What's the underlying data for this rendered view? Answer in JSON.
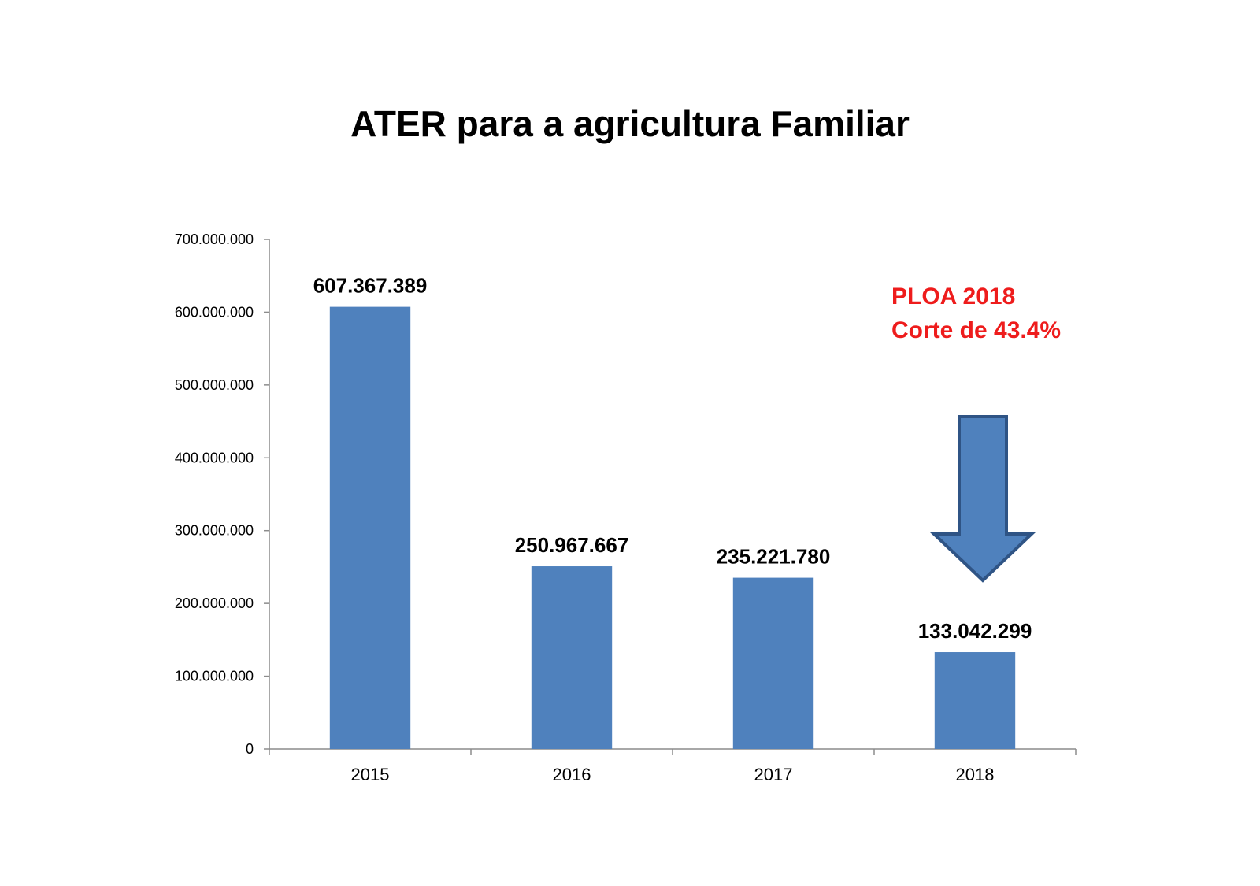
{
  "title": "ATER para a agricultura Familiar",
  "annotation": {
    "line1": "PLOA 2018",
    "line2": "Corte de 43.4%",
    "color": "#ee1c1c",
    "icon": "down-arrow-icon"
  },
  "colors": {
    "bar": "#4f81bd",
    "arrow_fill": "#4f81bd",
    "arrow_stroke": "#2f5485",
    "axis": "#8c8c8c"
  },
  "chart_data": {
    "type": "bar",
    "title": "ATER para a agricultura Familiar",
    "xlabel": "",
    "ylabel": "",
    "categories": [
      "2015",
      "2016",
      "2017",
      "2018"
    ],
    "values": [
      607367389,
      250967667,
      235221780,
      133042299
    ],
    "value_labels": [
      "607.367.389",
      "250.967.667",
      "235.221.780",
      "133.042.299"
    ],
    "ylim": [
      0,
      700000000
    ],
    "yticks": [
      0,
      100000000,
      200000000,
      300000000,
      400000000,
      500000000,
      600000000,
      700000000
    ],
    "ytick_labels": [
      "0",
      "100.000.000",
      "200.000.000",
      "300.000.000",
      "400.000.000",
      "500.000.000",
      "600.000.000",
      "700.000.000"
    ],
    "grid": false,
    "legend": "none"
  }
}
